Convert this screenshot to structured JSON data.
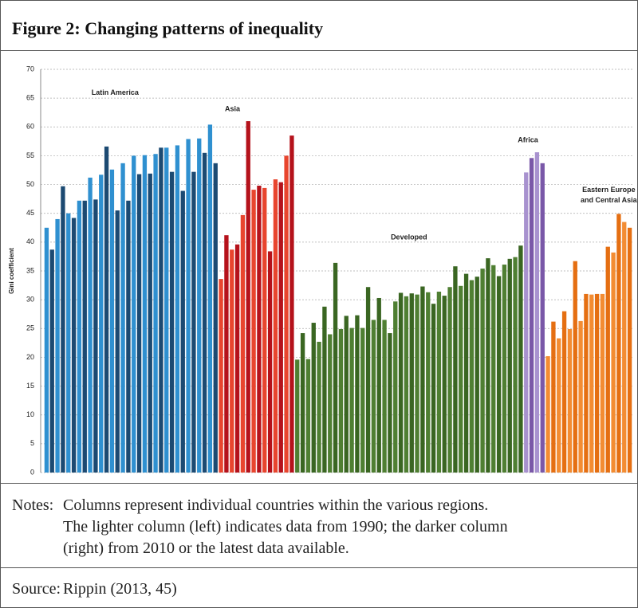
{
  "header": {
    "title": "Figure 2: Changing patterns of inequality"
  },
  "chart_data": {
    "type": "bar",
    "y_label": "Gini coefficient",
    "ylim": [
      0,
      70
    ],
    "yticks": [
      0,
      5,
      10,
      15,
      20,
      25,
      30,
      35,
      40,
      45,
      50,
      55,
      60,
      65,
      70
    ],
    "grid": true,
    "groups": [
      {
        "label": [
          "Latin America"
        ],
        "colors": [
          "#2f90d0",
          "#1c4a72"
        ],
        "values": [
          [
            42.5,
            38.7
          ],
          [
            44,
            49.7
          ],
          [
            45,
            44.2
          ],
          [
            47.2,
            47.2
          ],
          [
            51.2,
            47.4
          ],
          [
            51.7,
            56.6
          ],
          [
            52.6,
            45.5
          ],
          [
            53.7,
            47.2
          ],
          [
            55,
            51.8
          ],
          [
            55.1,
            51.9
          ],
          [
            55.3,
            56.4
          ],
          [
            56.4,
            52.2
          ],
          [
            56.8,
            48.9
          ],
          [
            57.9,
            52.2
          ],
          [
            58,
            55.5
          ],
          [
            60.4,
            53.7
          ]
        ]
      },
      {
        "label": [
          "Asia"
        ],
        "colors": [
          "#e8452e",
          "#b5121b"
        ],
        "values": [
          [
            33.6,
            41.2
          ],
          [
            38.7,
            39.6
          ],
          [
            44.7,
            61
          ],
          [
            49.1,
            49.8
          ],
          [
            49.4,
            38.4
          ],
          [
            50.9,
            50.4
          ],
          [
            55,
            58.5
          ]
        ]
      },
      {
        "label": [
          "Developed"
        ],
        "colors": [
          "#4f7f32",
          "#3a6622"
        ],
        "values": [
          [
            19.6,
            24.2
          ],
          [
            19.7,
            26
          ],
          [
            22.7,
            28.8
          ],
          [
            24,
            36.4
          ],
          [
            24.9,
            27.2
          ],
          [
            25.1,
            27.3
          ],
          [
            25.1,
            32.2
          ],
          [
            26.5,
            30.3
          ],
          [
            26.5,
            24.2
          ],
          [
            29.7,
            31.2
          ],
          [
            30.6,
            31.1
          ],
          [
            30.9,
            32.3
          ],
          [
            31.3,
            29.3
          ],
          [
            31.4,
            30.7
          ],
          [
            32.2,
            35.8
          ],
          [
            32.4,
            34.5
          ],
          [
            33.4,
            34
          ],
          [
            35.4,
            37.2
          ],
          [
            36,
            34.1
          ],
          [
            36.1,
            37.1
          ],
          [
            37.4,
            39.4
          ]
        ]
      },
      {
        "label": [
          "Africa"
        ],
        "colors": [
          "#a892cf",
          "#7a58a8"
        ],
        "values": [
          [
            52.1,
            54.6
          ],
          [
            55.6,
            53.7
          ]
        ]
      },
      {
        "label": [
          "Eastern Europe",
          "and Central Asia"
        ],
        "colors": [
          "#f38c32",
          "#e56f12"
        ],
        "values": [
          [
            20.2,
            26.2
          ],
          [
            23.3,
            28
          ],
          [
            24.9,
            36.7
          ],
          [
            26.3,
            31
          ],
          [
            30.9,
            31
          ],
          [
            31,
            39.2
          ],
          [
            38.2,
            44.9
          ],
          [
            43.5,
            42.5
          ]
        ]
      }
    ]
  },
  "notes": {
    "label": "Notes:",
    "lines": [
      "Columns represent individual countries within the various regions.",
      "The lighter column (left) indicates data from 1990; the darker column",
      "(right) from 2010 or the latest data available."
    ]
  },
  "source": {
    "label": "Source:",
    "text": "Rippin (2013, 45)"
  }
}
